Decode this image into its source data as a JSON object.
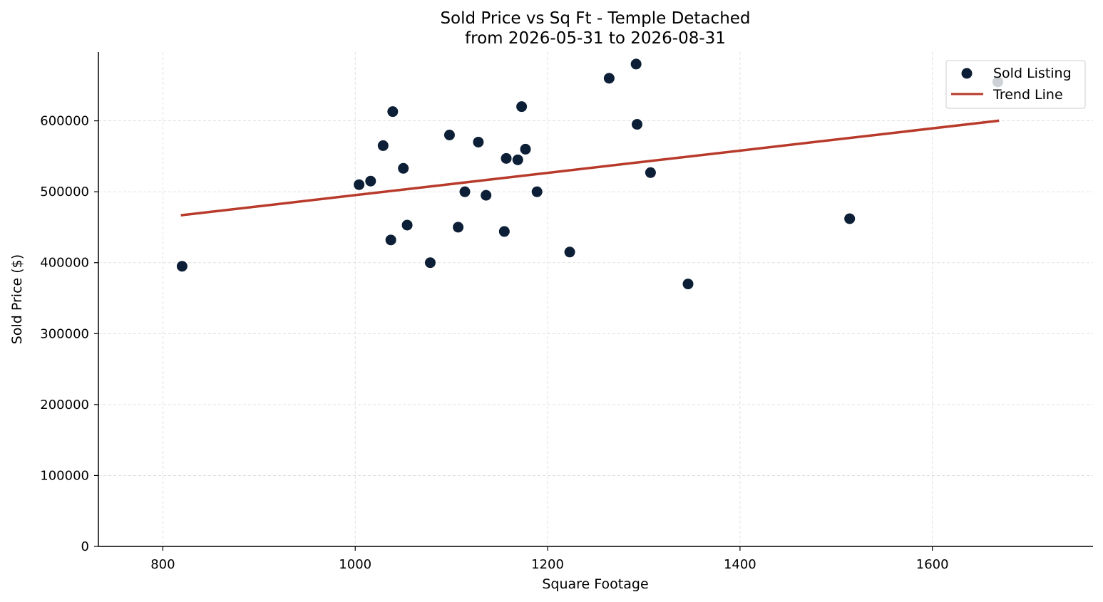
{
  "chart_data": {
    "type": "scatter",
    "title": "Sold Price vs Sq Ft - Temple Detached",
    "subtitle": "from 2026-05-31 to 2026-08-31",
    "xlabel": "Square Footage",
    "ylabel": "Sold Price ($)",
    "xlim": [
      733,
      1767
    ],
    "ylim": [
      0,
      697000
    ],
    "xticks": [
      800,
      1000,
      1200,
      1400,
      1600
    ],
    "yticks": [
      0,
      100000,
      200000,
      300000,
      400000,
      500000,
      600000
    ],
    "grid": true,
    "legend_position": "top-right",
    "series": [
      {
        "name": "Sold Listing",
        "kind": "scatter",
        "color": "#0d1f36",
        "points": [
          [
            820,
            395000
          ],
          [
            1004,
            510000
          ],
          [
            1016,
            515000
          ],
          [
            1029,
            565000
          ],
          [
            1037,
            432000
          ],
          [
            1039,
            613000
          ],
          [
            1050,
            533000
          ],
          [
            1054,
            453000
          ],
          [
            1078,
            400000
          ],
          [
            1098,
            580000
          ],
          [
            1107,
            450000
          ],
          [
            1114,
            500000
          ],
          [
            1128,
            570000
          ],
          [
            1136,
            495000
          ],
          [
            1155,
            444000
          ],
          [
            1157,
            547000
          ],
          [
            1169,
            545000
          ],
          [
            1173,
            620000
          ],
          [
            1177,
            560000
          ],
          [
            1189,
            500000
          ],
          [
            1223,
            415000
          ],
          [
            1264,
            660000
          ],
          [
            1292,
            680000
          ],
          [
            1293,
            595000
          ],
          [
            1307,
            527000
          ],
          [
            1346,
            370000
          ],
          [
            1514,
            462000
          ],
          [
            1668,
            655000
          ]
        ]
      },
      {
        "name": "Trend Line",
        "kind": "line",
        "color": "#b83a2a",
        "points": [
          [
            820,
            467000
          ],
          [
            1668,
            600000
          ]
        ]
      }
    ]
  }
}
